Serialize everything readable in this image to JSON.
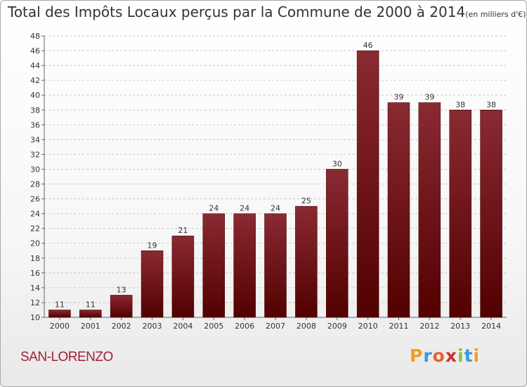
{
  "chart_data": {
    "type": "bar",
    "title": "Total des Impôts Locaux perçus par la Commune de 2000 à 2014",
    "unit_note": "(en milliers d'€)",
    "categories": [
      "2000",
      "2001",
      "2002",
      "2003",
      "2004",
      "2005",
      "2006",
      "2007",
      "2008",
      "2009",
      "2010",
      "2011",
      "2012",
      "2013",
      "2014"
    ],
    "values": [
      11,
      11,
      13,
      19,
      21,
      24,
      24,
      24,
      25,
      30,
      46,
      39,
      39,
      38,
      38
    ],
    "ylim": [
      10,
      48
    ],
    "ytick_step": 2,
    "xlabel": "",
    "ylabel": "",
    "grid": true,
    "bar_color_top": "#8a2a32",
    "bar_color_bottom": "#520000"
  },
  "commune_name": "SAN-LORENZO",
  "logo": {
    "letters": [
      "P",
      "r",
      "o",
      "x",
      "i",
      "t",
      "i"
    ],
    "colors": [
      "#f0a020",
      "#3a9ad9",
      "#e8602a",
      "#d03030",
      "#8cc63f",
      "#3a9ad9",
      "#f0a020"
    ]
  }
}
